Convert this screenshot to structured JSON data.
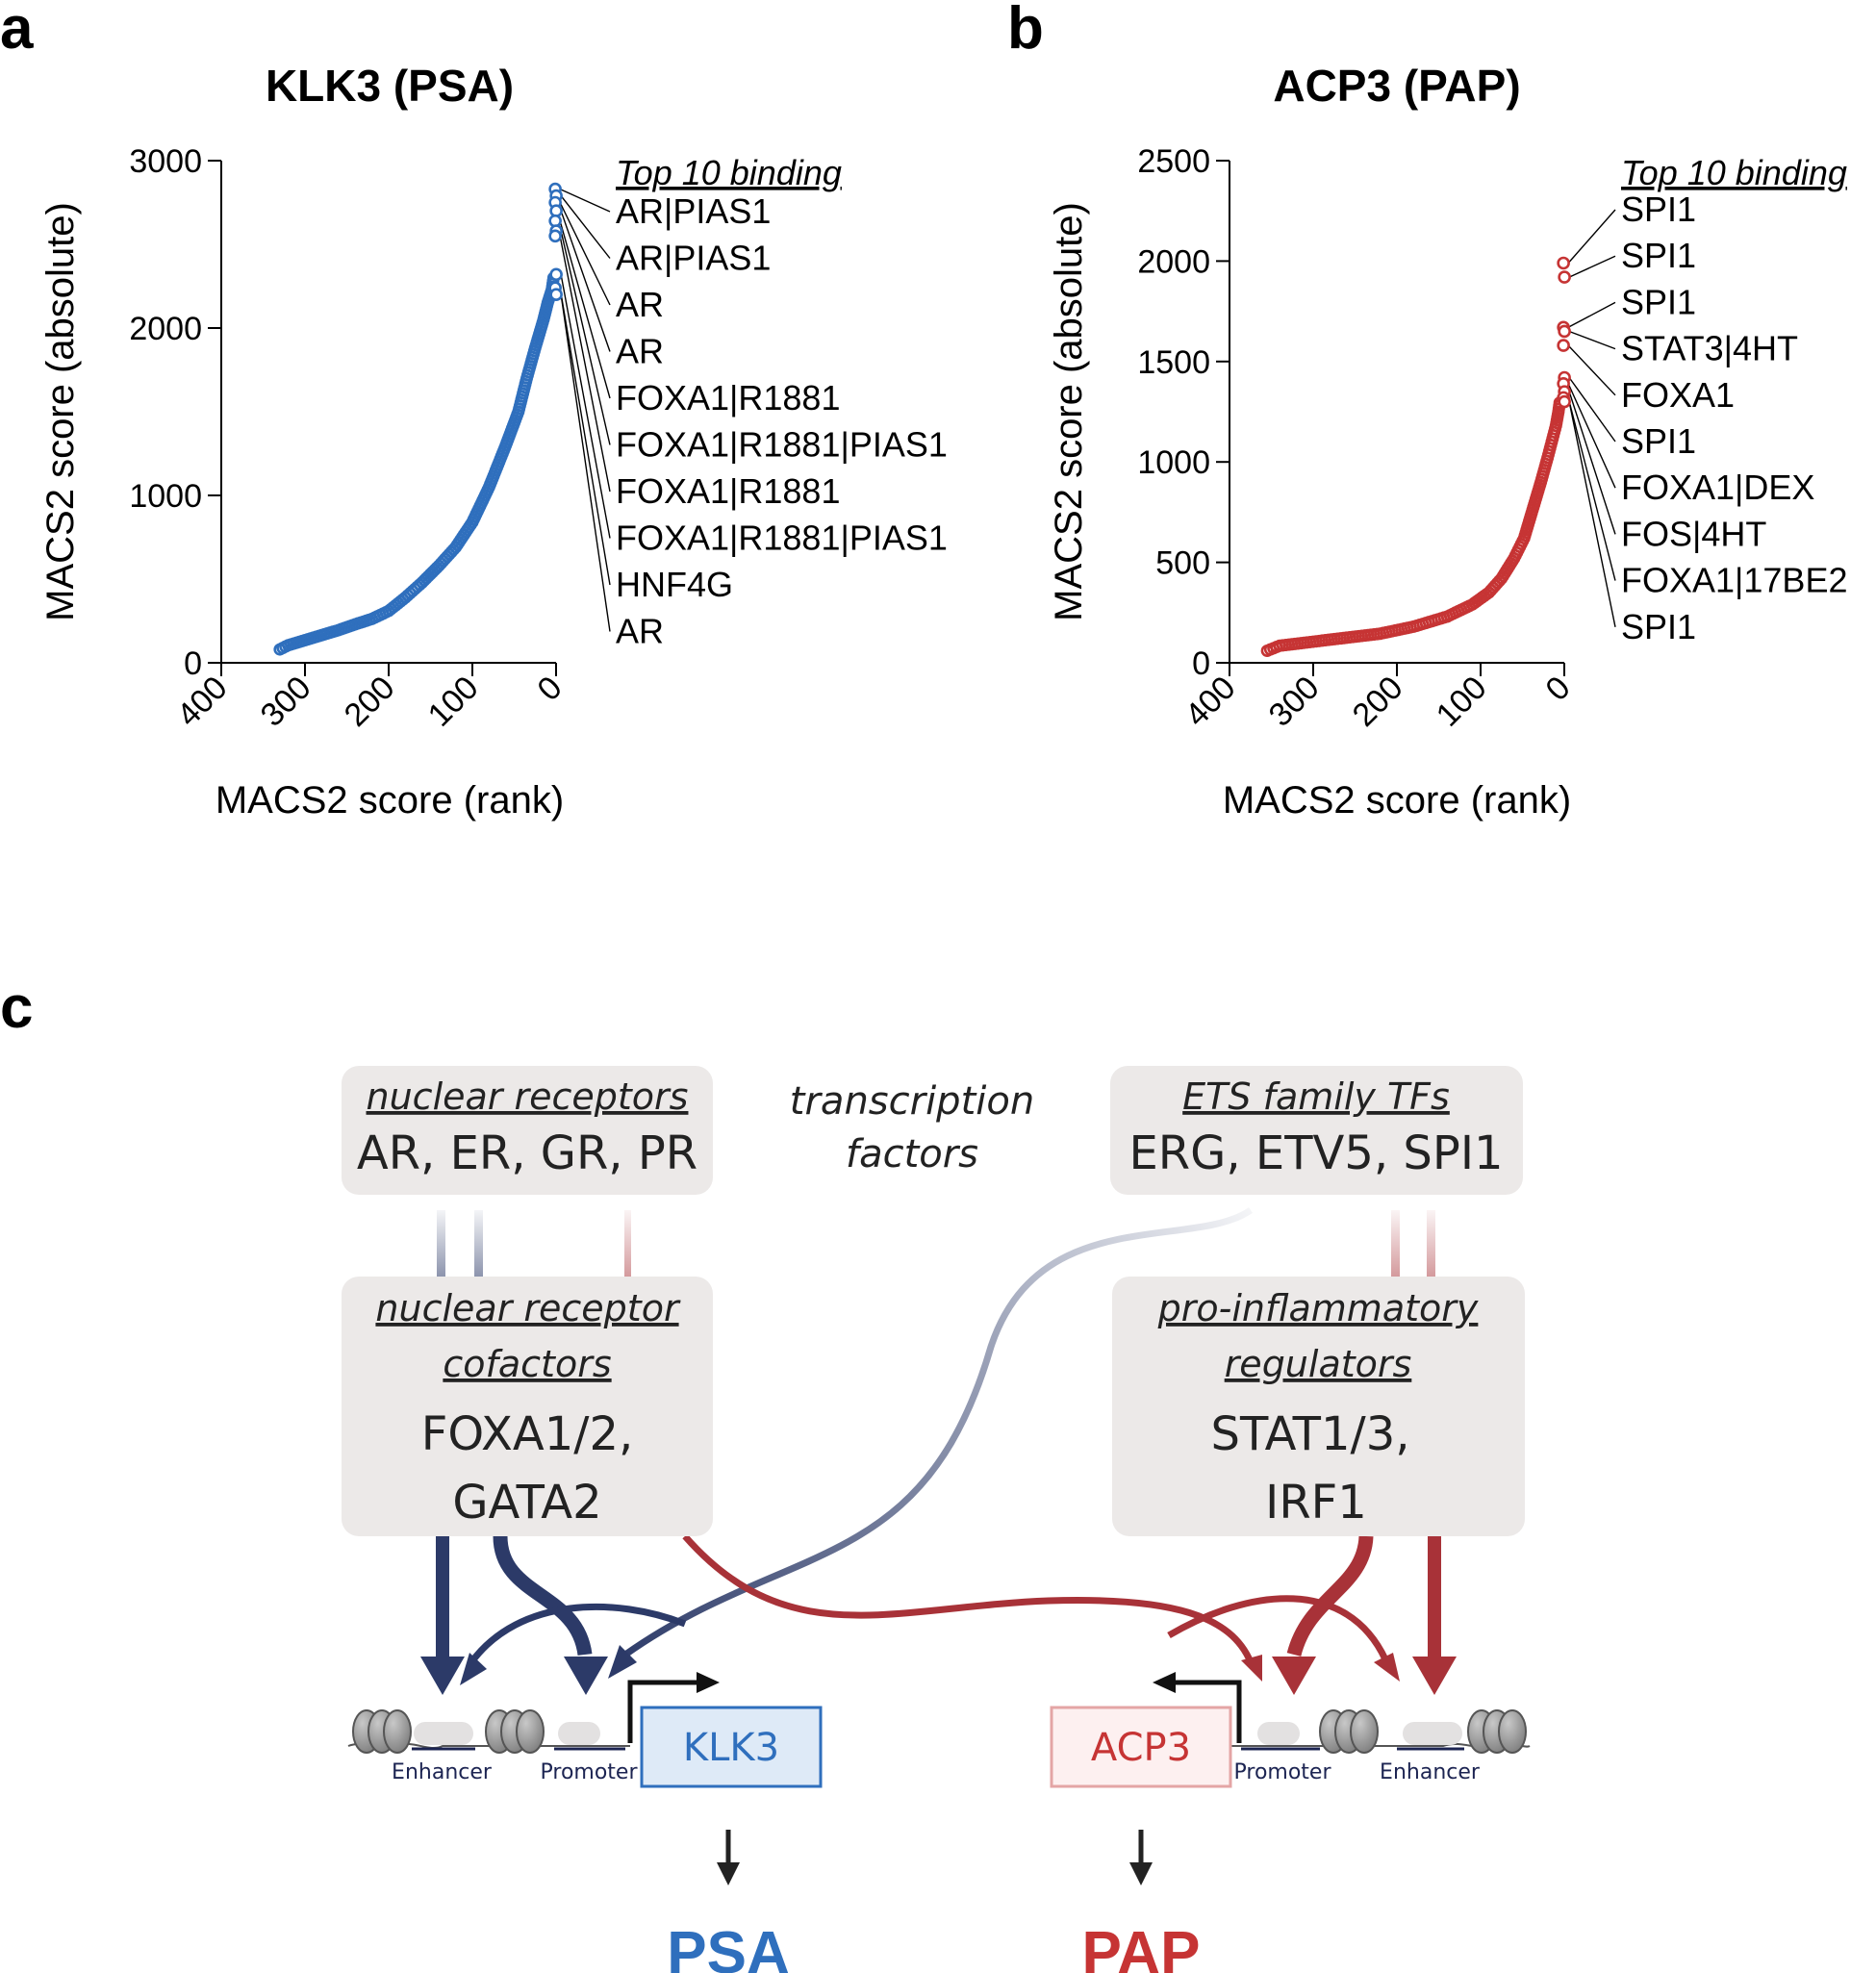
{
  "panels": {
    "a": "a",
    "b": "b",
    "c": "c"
  },
  "colors": {
    "klk3": "#2f6fbd",
    "acp3": "#c63434",
    "navy": "#2c3a68",
    "maroon": "#a83238",
    "box": "#ece9e8"
  },
  "chart_data": [
    {
      "type": "scatter",
      "title": "KLK3 (PSA)",
      "xlabel": "MACS2 score (rank)",
      "ylabel": "MACS2 score (absolute)",
      "xlim": [
        400,
        0
      ],
      "ylim": [
        0,
        3000
      ],
      "x_ticks": [
        "400",
        "300",
        "200",
        "100",
        "0"
      ],
      "y_ticks": [
        "0",
        "1000",
        "2000",
        "3000"
      ],
      "color": "#2f6fbd",
      "curve": [
        [
          330,
          80
        ],
        [
          320,
          105
        ],
        [
          300,
          135
        ],
        [
          280,
          165
        ],
        [
          260,
          195
        ],
        [
          240,
          230
        ],
        [
          220,
          262
        ],
        [
          200,
          310
        ],
        [
          180,
          390
        ],
        [
          160,
          480
        ],
        [
          140,
          580
        ],
        [
          120,
          690
        ],
        [
          100,
          840
        ],
        [
          80,
          1050
        ],
        [
          60,
          1300
        ],
        [
          45,
          1500
        ],
        [
          35,
          1700
        ],
        [
          25,
          1880
        ],
        [
          15,
          2050
        ],
        [
          10,
          2150
        ],
        [
          5,
          2230
        ],
        [
          3,
          2300
        ],
        [
          1,
          2320
        ]
      ],
      "legend_title": "Top 10 binding",
      "top10": [
        {
          "label": "AR|PIAS1",
          "value": 2830
        },
        {
          "label": "AR|PIAS1",
          "value": 2790
        },
        {
          "label": "AR",
          "value": 2750
        },
        {
          "label": "AR",
          "value": 2700
        },
        {
          "label": "FOXA1|R1881",
          "value": 2640
        },
        {
          "label": "FOXA1|R1881|PIAS1",
          "value": 2580
        },
        {
          "label": "FOXA1|R1881",
          "value": 2550
        },
        {
          "label": "FOXA1|R1881|PIAS1",
          "value": 2320
        },
        {
          "label": "HNF4G",
          "value": 2240
        },
        {
          "label": "AR",
          "value": 2200
        }
      ]
    },
    {
      "type": "scatter",
      "title": "ACP3 (PAP)",
      "xlabel": "MACS2 score (rank)",
      "ylabel": "MACS2 score (absolute)",
      "xlim": [
        400,
        0
      ],
      "ylim": [
        0,
        2500
      ],
      "x_ticks": [
        "400",
        "300",
        "200",
        "100",
        "0"
      ],
      "y_ticks": [
        "0",
        "500",
        "1000",
        "1500",
        "2000",
        "2500"
      ],
      "color": "#c63434",
      "curve": [
        [
          355,
          60
        ],
        [
          340,
          85
        ],
        [
          300,
          105
        ],
        [
          260,
          125
        ],
        [
          220,
          145
        ],
        [
          180,
          180
        ],
        [
          140,
          230
        ],
        [
          110,
          290
        ],
        [
          90,
          350
        ],
        [
          75,
          420
        ],
        [
          60,
          520
        ],
        [
          48,
          620
        ],
        [
          38,
          760
        ],
        [
          28,
          900
        ],
        [
          20,
          1020
        ],
        [
          15,
          1100
        ],
        [
          10,
          1180
        ],
        [
          7,
          1250
        ],
        [
          5,
          1310
        ]
      ],
      "legend_title": "Top 10 binding",
      "top10": [
        {
          "label": "SPI1",
          "value": 1990
        },
        {
          "label": "SPI1",
          "value": 1920
        },
        {
          "label": "SPI1",
          "value": 1670
        },
        {
          "label": "STAT3|4HT",
          "value": 1650
        },
        {
          "label": "FOXA1",
          "value": 1580
        },
        {
          "label": "SPI1",
          "value": 1420
        },
        {
          "label": "FOXA1|DEX",
          "value": 1390
        },
        {
          "label": "FOS|4HT",
          "value": 1350
        },
        {
          "label": "FOXA1|17BE2",
          "value": 1320
        },
        {
          "label": "SPI1",
          "value": 1300
        }
      ]
    }
  ],
  "diagram": {
    "tf_label_line1": "transcription",
    "tf_label_line2": "factors",
    "nuclear_receptors": {
      "head": "nuclear receptors",
      "body": "AR, ER, GR, PR"
    },
    "ets_family": {
      "head": "ETS family TFs",
      "body": "ERG, ETV5, SPI1"
    },
    "nr_cofactors": {
      "head1": "nuclear receptor",
      "head2": "cofactors",
      "body1": "FOXA1/2,",
      "body2": "GATA2"
    },
    "pro_inflammatory": {
      "head1": "pro-inflammatory",
      "head2": "regulators",
      "body1": "STAT1/3,",
      "body2": "IRF1"
    },
    "left_enhancer": "Enhancer",
    "left_promoter": "Promoter",
    "right_promoter": "Promoter",
    "right_enhancer": "Enhancer",
    "klk3_gene": "KLK3",
    "acp3_gene": "ACP3",
    "psa_protein": "PSA",
    "pap_protein": "PAP"
  }
}
